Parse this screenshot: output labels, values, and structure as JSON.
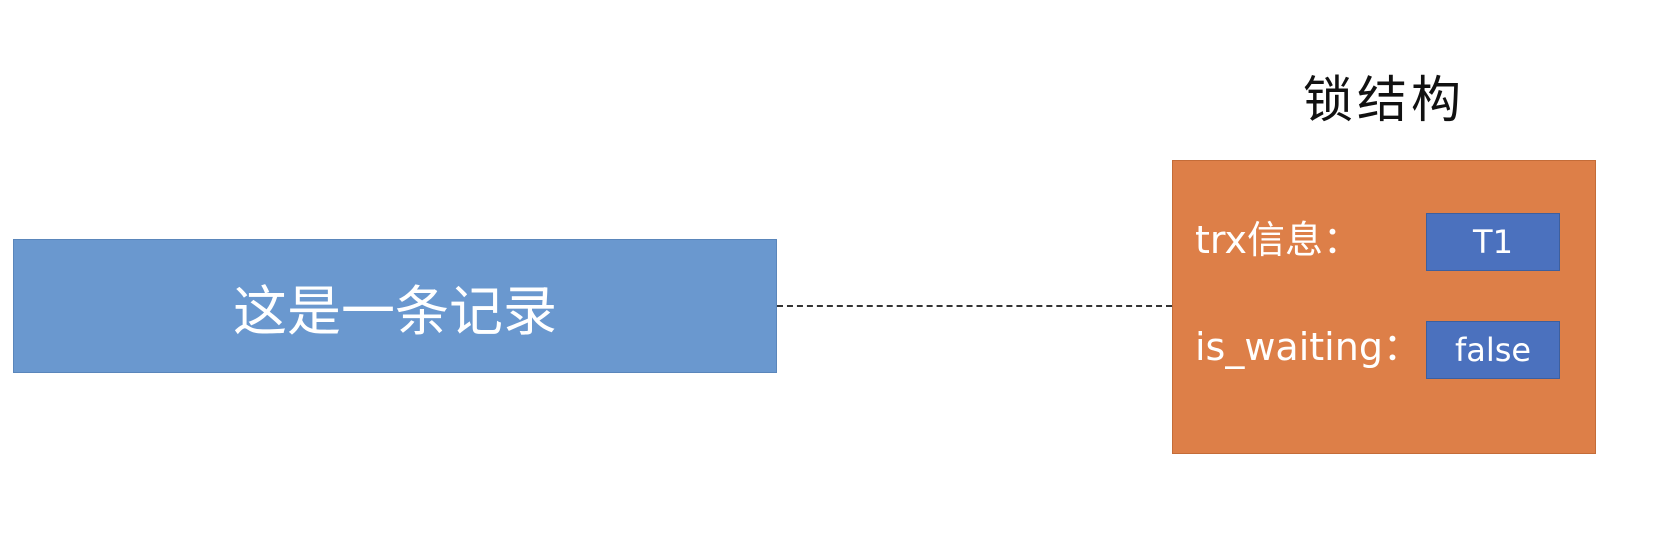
{
  "record": {
    "label": "这是一条记录"
  },
  "lock": {
    "title": "锁结构",
    "fields": [
      {
        "label": "trx信息：",
        "value": "T1"
      },
      {
        "label": "is_waiting：",
        "value": "false"
      }
    ]
  },
  "colors": {
    "record_fill": "#6a98cf",
    "lock_fill": "#dd7f48",
    "value_fill": "#4b71be",
    "connector": "#333333"
  }
}
